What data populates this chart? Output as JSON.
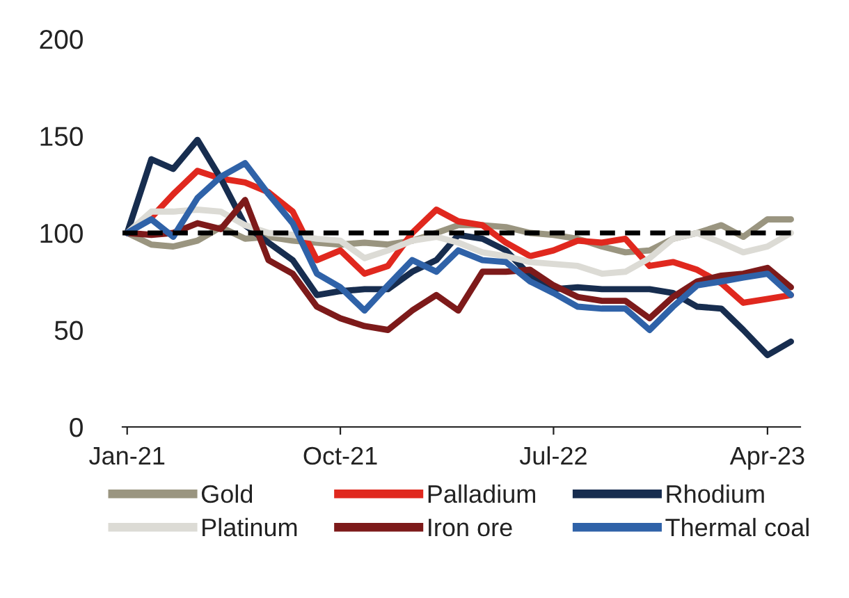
{
  "chart_data": {
    "type": "line",
    "x": [
      "2021-01",
      "2021-02",
      "2021-03",
      "2021-04",
      "2021-05",
      "2021-06",
      "2021-07",
      "2021-08",
      "2021-09",
      "2021-10",
      "2021-11",
      "2021-12",
      "2022-01",
      "2022-02",
      "2022-03",
      "2022-04",
      "2022-05",
      "2022-06",
      "2022-07",
      "2022-08",
      "2022-09",
      "2022-10",
      "2022-11",
      "2022-12",
      "2023-01",
      "2023-02",
      "2023-03",
      "2023-04",
      "2023-05"
    ],
    "xlim": [
      "2020-12-26",
      "2023-05-13"
    ],
    "xticks": [
      {
        "value": "2021-01",
        "label": "Jan-21"
      },
      {
        "value": "2021-10",
        "label": "Oct-21"
      },
      {
        "value": "2022-07",
        "label": "Jul-22"
      },
      {
        "value": "2023-04",
        "label": "Apr-23"
      }
    ],
    "ylim": [
      0,
      200
    ],
    "yticks": [
      0,
      50,
      100,
      150,
      200
    ],
    "tick_labels": true,
    "series": [
      {
        "name": "Gold",
        "color": "#9a9580",
        "values": [
          100,
          94,
          93,
          96,
          103,
          97,
          98,
          96,
          95,
          94,
          95,
          94,
          96,
          100,
          104,
          104,
          103,
          100,
          99,
          97,
          93,
          90,
          91,
          97,
          100,
          104,
          98,
          107,
          107
        ]
      },
      {
        "name": "Palladium",
        "color": "#e0281e",
        "values": [
          100,
          108,
          120,
          132,
          128,
          126,
          121,
          111,
          86,
          91,
          79,
          83,
          100,
          112,
          106,
          104,
          95,
          88,
          91,
          96,
          95,
          97,
          83,
          85,
          81,
          74,
          64,
          66,
          68
        ]
      },
      {
        "name": "Rhodium",
        "color": "#172d4f",
        "values": [
          100,
          138,
          133,
          148,
          128,
          104,
          95,
          86,
          68,
          70,
          71,
          71,
          80,
          86,
          99,
          97,
          91,
          78,
          71,
          72,
          71,
          71,
          71,
          69,
          62,
          61,
          50,
          37,
          44
        ]
      },
      {
        "name": "Platinum",
        "color": "#dcdbd5",
        "values": [
          100,
          111,
          111,
          112,
          111,
          104,
          100,
          99,
          97,
          96,
          87,
          91,
          96,
          98,
          95,
          90,
          88,
          85,
          84,
          83,
          79,
          80,
          87,
          97,
          100,
          95,
          90,
          93,
          100
        ]
      },
      {
        "name": "Iron ore",
        "color": "#7d1a1a",
        "values": [
          100,
          99,
          100,
          105,
          102,
          117,
          86,
          79,
          62,
          56,
          52,
          50,
          60,
          68,
          60,
          80,
          80,
          81,
          73,
          67,
          65,
          65,
          56,
          67,
          75,
          78,
          79,
          82,
          72
        ]
      },
      {
        "name": "Thermal coal",
        "color": "#2f62a8",
        "values": [
          100,
          107,
          98,
          118,
          129,
          136,
          120,
          105,
          79,
          72,
          60,
          73,
          86,
          80,
          91,
          86,
          85,
          75,
          69,
          62,
          61,
          61,
          50,
          62,
          73,
          75,
          77,
          79,
          68
        ]
      }
    ],
    "ref_lines": [
      {
        "axis": "y",
        "value": 100,
        "color": "#000000",
        "line_style": "dashed"
      }
    ],
    "grid": false,
    "legend": "bottom",
    "line_style": "solid",
    "marker": "none"
  }
}
